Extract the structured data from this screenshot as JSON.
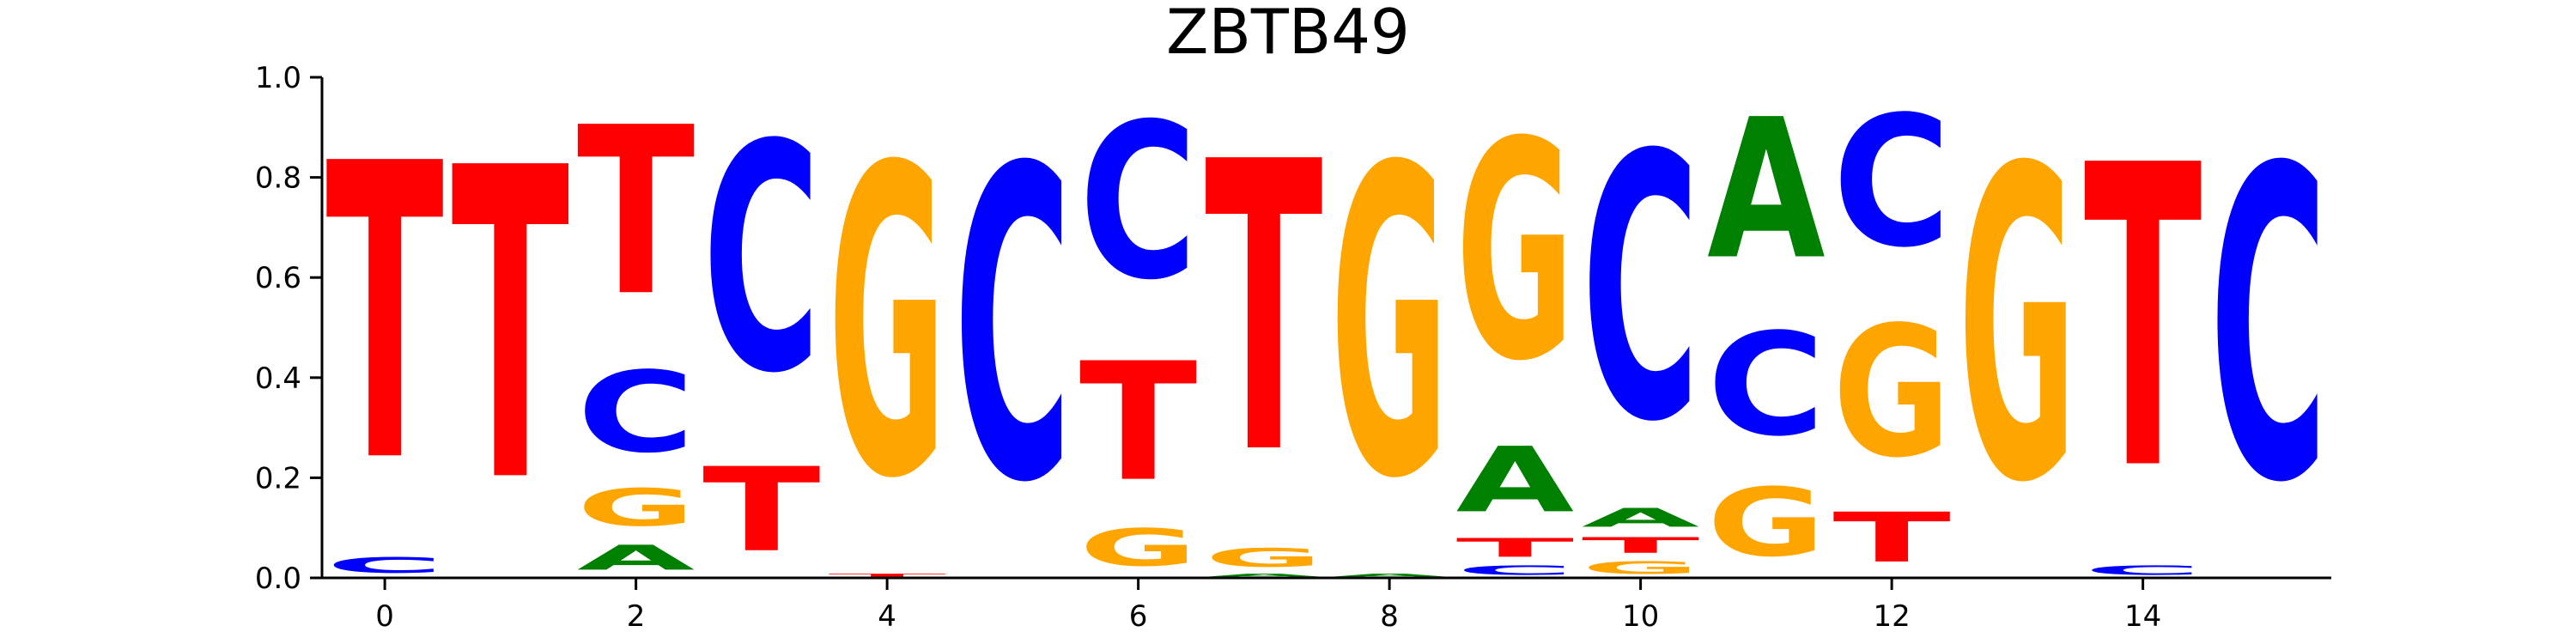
{
  "chart_data": {
    "type": "sequence-logo",
    "title": "ZBTB49",
    "xlabel": "",
    "ylabel": "",
    "ylim": [
      0,
      1
    ],
    "xlim": [
      -0.5,
      15.5
    ],
    "x_ticks": [
      0,
      2,
      4,
      6,
      8,
      10,
      12,
      14
    ],
    "x_tick_labels": [
      "0",
      "2",
      "4",
      "6",
      "8",
      "10",
      "12",
      "14"
    ],
    "y_ticks": [
      0.0,
      0.2,
      0.4,
      0.6,
      0.8,
      1.0
    ],
    "y_tick_labels": [
      "0.0",
      "0.2",
      "0.4",
      "0.6",
      "0.8",
      "1.0"
    ],
    "letter_colors": {
      "A": "#008000",
      "C": "#0000ff",
      "G": "#ffa500",
      "T": "#ff0000"
    },
    "positions": [
      {
        "x": 0,
        "stack": [
          {
            "base": "C",
            "value": 0.05
          },
          {
            "base": "T",
            "value": 0.95
          }
        ]
      },
      {
        "x": 1,
        "stack": [
          {
            "base": "T",
            "value": 1.0
          }
        ]
      },
      {
        "x": 2,
        "stack": [
          {
            "base": "A",
            "value": 0.08
          },
          {
            "base": "G",
            "value": 0.12
          },
          {
            "base": "C",
            "value": 0.26
          },
          {
            "base": "T",
            "value": 0.54
          }
        ]
      },
      {
        "x": 3,
        "stack": [
          {
            "base": "T",
            "value": 0.27
          },
          {
            "base": "C",
            "value": 0.73
          }
        ]
      },
      {
        "x": 4,
        "stack": [
          {
            "base": "T",
            "value": 0.01
          },
          {
            "base": "G",
            "value": 0.99
          }
        ]
      },
      {
        "x": 5,
        "stack": [
          {
            "base": "C",
            "value": 1.0
          }
        ]
      },
      {
        "x": 6,
        "stack": [
          {
            "base": "G",
            "value": 0.12
          },
          {
            "base": "T",
            "value": 0.38
          },
          {
            "base": "C",
            "value": 0.5
          }
        ]
      },
      {
        "x": 7,
        "stack": [
          {
            "base": "A",
            "value": 0.01
          },
          {
            "base": "G",
            "value": 0.06
          },
          {
            "base": "T",
            "value": 0.93
          }
        ]
      },
      {
        "x": 8,
        "stack": [
          {
            "base": "A",
            "value": 0.01
          },
          {
            "base": "G",
            "value": 0.99
          }
        ]
      },
      {
        "x": 9,
        "stack": [
          {
            "base": "C",
            "value": 0.03
          },
          {
            "base": "T",
            "value": 0.06
          },
          {
            "base": "A",
            "value": 0.21
          },
          {
            "base": "G",
            "value": 0.7
          }
        ]
      },
      {
        "x": 10,
        "stack": [
          {
            "base": "G",
            "value": 0.04
          },
          {
            "base": "T",
            "value": 0.05
          },
          {
            "base": "A",
            "value": 0.06
          },
          {
            "base": "C",
            "value": 0.85
          }
        ]
      },
      {
        "x": 11,
        "stack": [
          {
            "base": "G",
            "value": 0.22
          },
          {
            "base": "C",
            "value": 0.33
          },
          {
            "base": "A",
            "value": 0.45
          }
        ]
      },
      {
        "x": 12,
        "stack": [
          {
            "base": "T",
            "value": 0.16
          },
          {
            "base": "G",
            "value": 0.42
          },
          {
            "base": "C",
            "value": 0.42
          }
        ]
      },
      {
        "x": 13,
        "stack": [
          {
            "base": "G",
            "value": 1.0
          }
        ]
      },
      {
        "x": 14,
        "stack": [
          {
            "base": "C",
            "value": 0.03
          },
          {
            "base": "T",
            "value": 0.97
          }
        ]
      },
      {
        "x": 15,
        "stack": [
          {
            "base": "C",
            "value": 1.0
          }
        ]
      }
    ],
    "grid": false
  }
}
